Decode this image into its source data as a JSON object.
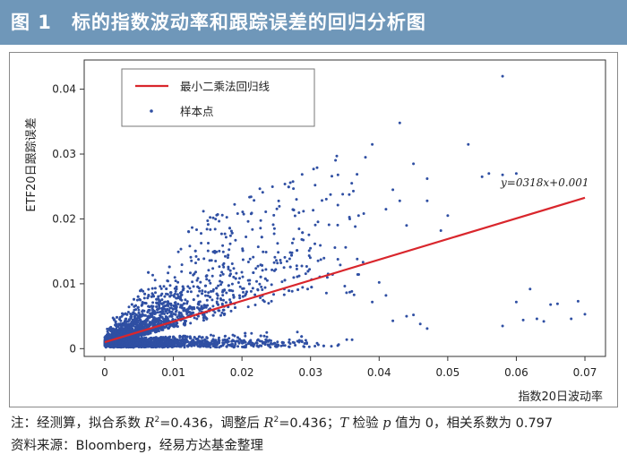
{
  "header": {
    "figure_number": "图 1",
    "title": "标的指数波动率和跟踪误差的回归分析图"
  },
  "chart_data": {
    "type": "scatter",
    "title": "",
    "xlabel": "指数20日波动率",
    "ylabel": "ETF20日跟踪误差",
    "xlim": [
      -0.003,
      0.073
    ],
    "ylim": [
      -0.0012,
      0.0445
    ],
    "x_ticks": [
      "0",
      "0.01",
      "0.02",
      "0.03",
      "0.04",
      "0.05",
      "0.06",
      "0.07"
    ],
    "y_ticks": [
      "0",
      "0.01",
      "0.02",
      "0.03",
      "0.04"
    ],
    "grid": false,
    "legend_position": "top-left",
    "legend": {
      "line_label": "最小二乘法回归线",
      "points_label": "样本点"
    },
    "regression": {
      "equation_label": "y=0318x+0.001",
      "slope": 0.318,
      "intercept": 0.001,
      "x_range": [
        0,
        0.07
      ]
    },
    "colors": {
      "points": "#2f4fa3",
      "line": "#d9262c"
    },
    "outliers": [
      [
        0.058,
        0.042
      ],
      [
        0.053,
        0.0315
      ],
      [
        0.043,
        0.0348
      ],
      [
        0.056,
        0.027
      ],
      [
        0.058,
        0.0268
      ],
      [
        0.06,
        0.027
      ],
      [
        0.055,
        0.0265
      ],
      [
        0.047,
        0.0262
      ],
      [
        0.045,
        0.0285
      ],
      [
        0.039,
        0.0315
      ],
      [
        0.038,
        0.0295
      ],
      [
        0.042,
        0.0245
      ],
      [
        0.047,
        0.0228
      ],
      [
        0.05,
        0.0205
      ],
      [
        0.044,
        0.019
      ],
      [
        0.049,
        0.0182
      ],
      [
        0.041,
        0.0215
      ],
      [
        0.043,
        0.0228
      ],
      [
        0.062,
        0.0092
      ],
      [
        0.069,
        0.0073
      ],
      [
        0.065,
        0.0068
      ],
      [
        0.066,
        0.0069
      ],
      [
        0.07,
        0.0053
      ],
      [
        0.06,
        0.0072
      ],
      [
        0.058,
        0.0035
      ],
      [
        0.063,
        0.0046
      ],
      [
        0.068,
        0.0046
      ],
      [
        0.061,
        0.0044
      ],
      [
        0.064,
        0.0042
      ],
      [
        0.045,
        0.0052
      ],
      [
        0.041,
        0.0082
      ],
      [
        0.037,
        0.0205
      ],
      [
        0.036,
        0.0255
      ],
      [
        0.039,
        0.0072
      ],
      [
        0.044,
        0.005
      ],
      [
        0.042,
        0.0043
      ],
      [
        0.046,
        0.0038
      ],
      [
        0.047,
        0.0031
      ],
      [
        0.04,
        0.0102
      ],
      [
        0.034,
        0.0268
      ]
    ]
  },
  "notes": {
    "line1_prefix": "注：经测算，拟合系数 ",
    "r_symbol": "R",
    "r_sup": "2",
    "r2_value": "=0.436，调整后 ",
    "r2_adj_value": "=0.436；",
    "t_symbol": "T",
    "t_text": " 检验 ",
    "p_symbol": "p",
    "p_text": " 值为 0，相关系数为 0.797",
    "line2": "资料来源：Bloomberg，经易方达基金整理"
  }
}
